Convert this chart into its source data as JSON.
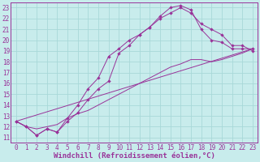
{
  "bg_color": "#c8ecec",
  "grid_color": "#a8d8d8",
  "line_color": "#993399",
  "marker_color": "#993399",
  "xlabel": "Windchill (Refroidissement éolien,°C)",
  "xlim": [
    -0.5,
    23.5
  ],
  "ylim": [
    10.5,
    23.5
  ],
  "xticks": [
    0,
    1,
    2,
    3,
    4,
    5,
    6,
    7,
    8,
    9,
    10,
    11,
    12,
    13,
    14,
    15,
    16,
    17,
    18,
    19,
    20,
    21,
    22,
    23
  ],
  "yticks": [
    11,
    12,
    13,
    14,
    15,
    16,
    17,
    18,
    19,
    20,
    21,
    22,
    23
  ],
  "lines": [
    {
      "x": [
        0,
        1,
        2,
        3,
        4,
        5,
        6,
        7,
        8,
        9,
        10,
        11,
        12,
        13,
        14,
        15,
        16,
        17,
        18,
        19,
        20,
        21,
        22,
        23
      ],
      "y": [
        12.5,
        12.0,
        11.2,
        11.8,
        11.5,
        12.5,
        13.3,
        14.5,
        15.5,
        16.2,
        18.8,
        19.5,
        20.5,
        21.2,
        22.2,
        23.0,
        23.2,
        22.8,
        21.0,
        20.0,
        19.8,
        19.2,
        19.2,
        19.2
      ],
      "marker": true
    },
    {
      "x": [
        0,
        1,
        2,
        3,
        4,
        5,
        6,
        7,
        8,
        9,
        10,
        11,
        12,
        13,
        14,
        15,
        16,
        17,
        18,
        19,
        20,
        21,
        22,
        23
      ],
      "y": [
        12.5,
        12.0,
        11.2,
        11.8,
        11.5,
        12.8,
        14.0,
        15.5,
        16.5,
        18.5,
        19.2,
        20.0,
        20.5,
        21.2,
        22.0,
        22.5,
        23.0,
        22.5,
        21.5,
        21.0,
        20.5,
        19.5,
        19.5,
        19.0
      ],
      "marker": true
    },
    {
      "x": [
        0,
        23
      ],
      "y": [
        12.5,
        19.2
      ],
      "marker": false
    },
    {
      "x": [
        0,
        1,
        2,
        3,
        4,
        5,
        6,
        7,
        8,
        9,
        10,
        11,
        12,
        13,
        14,
        15,
        16,
        17,
        18,
        19,
        20,
        21,
        22,
        23
      ],
      "y": [
        12.5,
        12.0,
        11.8,
        12.0,
        12.2,
        12.8,
        13.2,
        13.5,
        14.0,
        14.5,
        15.0,
        15.5,
        16.0,
        16.5,
        17.0,
        17.5,
        17.8,
        18.2,
        18.2,
        18.0,
        18.2,
        18.5,
        18.8,
        19.2
      ],
      "marker": false
    }
  ],
  "font_family": "monospace",
  "xlabel_fontsize": 6.5,
  "tick_fontsize": 5.5
}
